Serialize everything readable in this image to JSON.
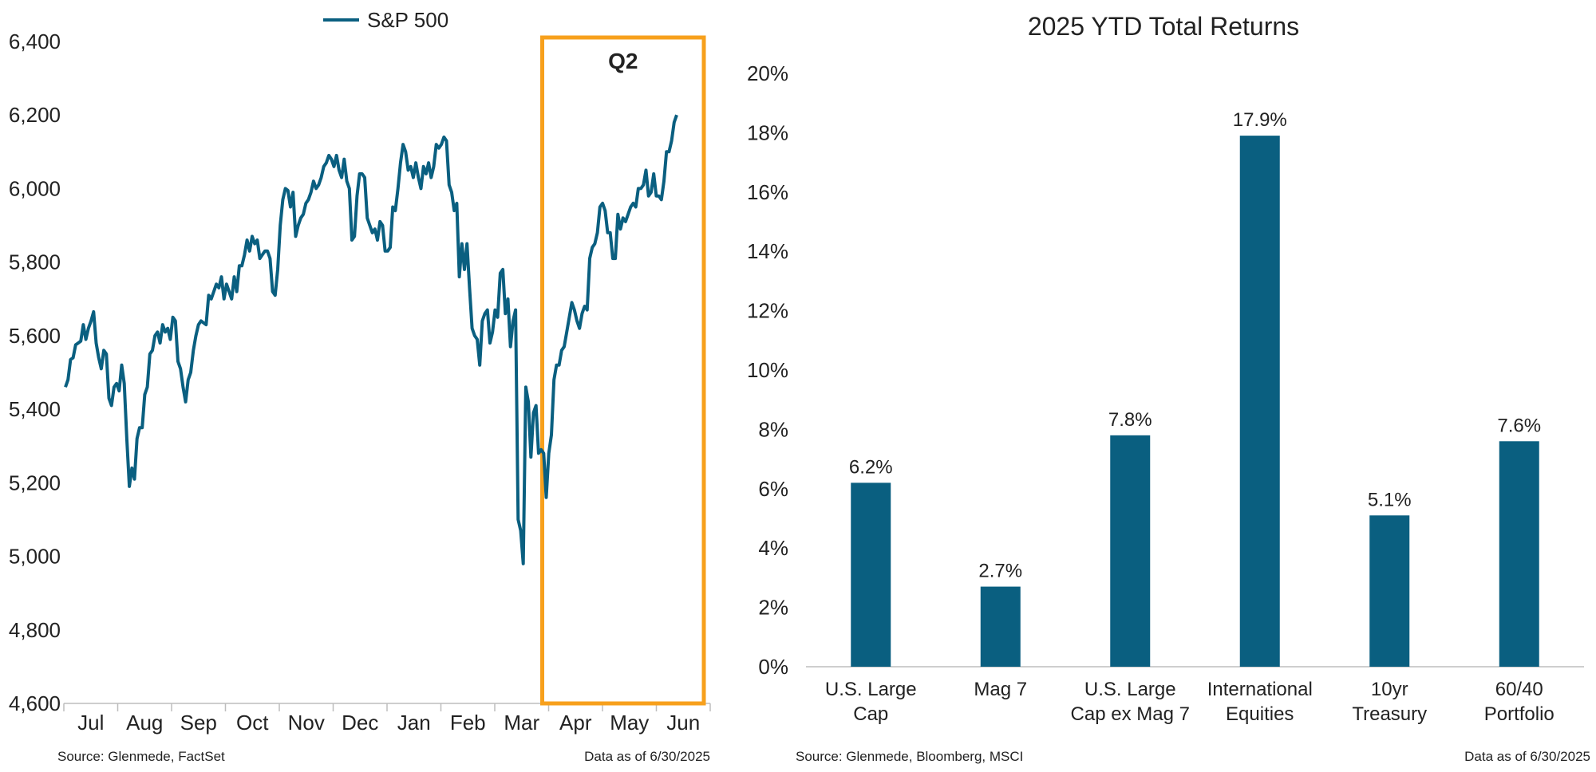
{
  "colors": {
    "series": "#0a5f80",
    "highlight": "#f7a01c",
    "axis": "#bdbdbd",
    "text": "#222222"
  },
  "left_chart": {
    "highlight_label": "Q2",
    "source": "Source: Glenmede, FactSet",
    "date_note": "Data as of 6/30/2025"
  },
  "right_chart": {
    "source": "Source: Glenmede, Bloomberg, MSCI",
    "date_note": "Data as of 6/30/2025"
  },
  "chart_data": [
    {
      "type": "line",
      "legend_position": "top-center",
      "series": [
        {
          "name": "S&P 500",
          "values": [
            5460,
            5480,
            5535,
            5540,
            5575,
            5580,
            5585,
            5630,
            5590,
            5620,
            5640,
            5665,
            5580,
            5540,
            5510,
            5560,
            5550,
            5430,
            5410,
            5460,
            5470,
            5450,
            5520,
            5470,
            5320,
            5190,
            5240,
            5210,
            5320,
            5350,
            5350,
            5440,
            5460,
            5550,
            5560,
            5600,
            5610,
            5580,
            5630,
            5610,
            5620,
            5590,
            5650,
            5640,
            5530,
            5510,
            5460,
            5420,
            5480,
            5500,
            5560,
            5600,
            5630,
            5640,
            5635,
            5630,
            5710,
            5700,
            5720,
            5740,
            5730,
            5760,
            5700,
            5740,
            5720,
            5700,
            5760,
            5720,
            5790,
            5790,
            5820,
            5860,
            5830,
            5870,
            5850,
            5860,
            5810,
            5820,
            5830,
            5830,
            5810,
            5720,
            5710,
            5780,
            5900,
            5970,
            6000,
            5995,
            5950,
            5990,
            5870,
            5900,
            5920,
            5930,
            5960,
            5970,
            5990,
            6020,
            6000,
            6010,
            6030,
            6060,
            6070,
            6090,
            6080,
            6060,
            6090,
            6050,
            6030,
            6080,
            6020,
            6000,
            5860,
            5870,
            5980,
            6040,
            6040,
            6030,
            5920,
            5900,
            5880,
            5890,
            5860,
            5910,
            5900,
            5830,
            5830,
            5840,
            5950,
            5940,
            6000,
            6070,
            6120,
            6100,
            6050,
            6060,
            6030,
            6070,
            6030,
            6000,
            6060,
            6040,
            6070,
            6030,
            6060,
            6120,
            6110,
            6120,
            6140,
            6130,
            6010,
            5990,
            5940,
            5960,
            5760,
            5850,
            5780,
            5850,
            5730,
            5620,
            5600,
            5590,
            5520,
            5640,
            5660,
            5670,
            5580,
            5610,
            5670,
            5650,
            5770,
            5780,
            5660,
            5700,
            5570,
            5640,
            5670,
            5100,
            5070,
            4980,
            5460,
            5420,
            5270,
            5390,
            5410,
            5280,
            5290,
            5280,
            5160,
            5280,
            5330,
            5480,
            5520,
            5520,
            5560,
            5570,
            5610,
            5650,
            5690,
            5670,
            5640,
            5620,
            5660,
            5680,
            5670,
            5810,
            5840,
            5850,
            5880,
            5950,
            5960,
            5940,
            5880,
            5880,
            5810,
            5810,
            5930,
            5890,
            5920,
            5910,
            5930,
            5950,
            5960,
            5950,
            6000,
            6000,
            6010,
            6050,
            5980,
            5990,
            6040,
            5980,
            5980,
            5970,
            6020,
            6100,
            6100,
            6130,
            6180,
            6200
          ]
        }
      ],
      "x_ticks": [
        "Jul",
        "Aug",
        "Sep",
        "Oct",
        "Nov",
        "Dec",
        "Jan",
        "Feb",
        "Mar",
        "Apr",
        "May",
        "Jun"
      ],
      "y_ticks": [
        "4,600",
        "4,800",
        "5,000",
        "5,200",
        "5,400",
        "5,600",
        "5,800",
        "6,000",
        "6,200",
        "6,400"
      ],
      "ylim": [
        4600,
        6400
      ],
      "highlight_period": "Q2"
    },
    {
      "type": "bar",
      "title": "2025 YTD Total Returns",
      "categories": [
        [
          "U.S. Large",
          "Cap"
        ],
        [
          "Mag 7"
        ],
        [
          "U.S. Large",
          "Cap ex Mag 7"
        ],
        [
          "International",
          "Equities"
        ],
        [
          "10yr",
          "Treasury"
        ],
        [
          "60/40",
          "Portfolio"
        ]
      ],
      "values": [
        6.2,
        2.7,
        7.8,
        17.9,
        5.1,
        7.6
      ],
      "data_labels": [
        "6.2%",
        "2.7%",
        "7.8%",
        "17.9%",
        "5.1%",
        "7.6%"
      ],
      "y_ticks": [
        "0%",
        "2%",
        "4%",
        "6%",
        "8%",
        "10%",
        "12%",
        "14%",
        "16%",
        "18%",
        "20%"
      ],
      "ylim": [
        0,
        20
      ]
    }
  ]
}
